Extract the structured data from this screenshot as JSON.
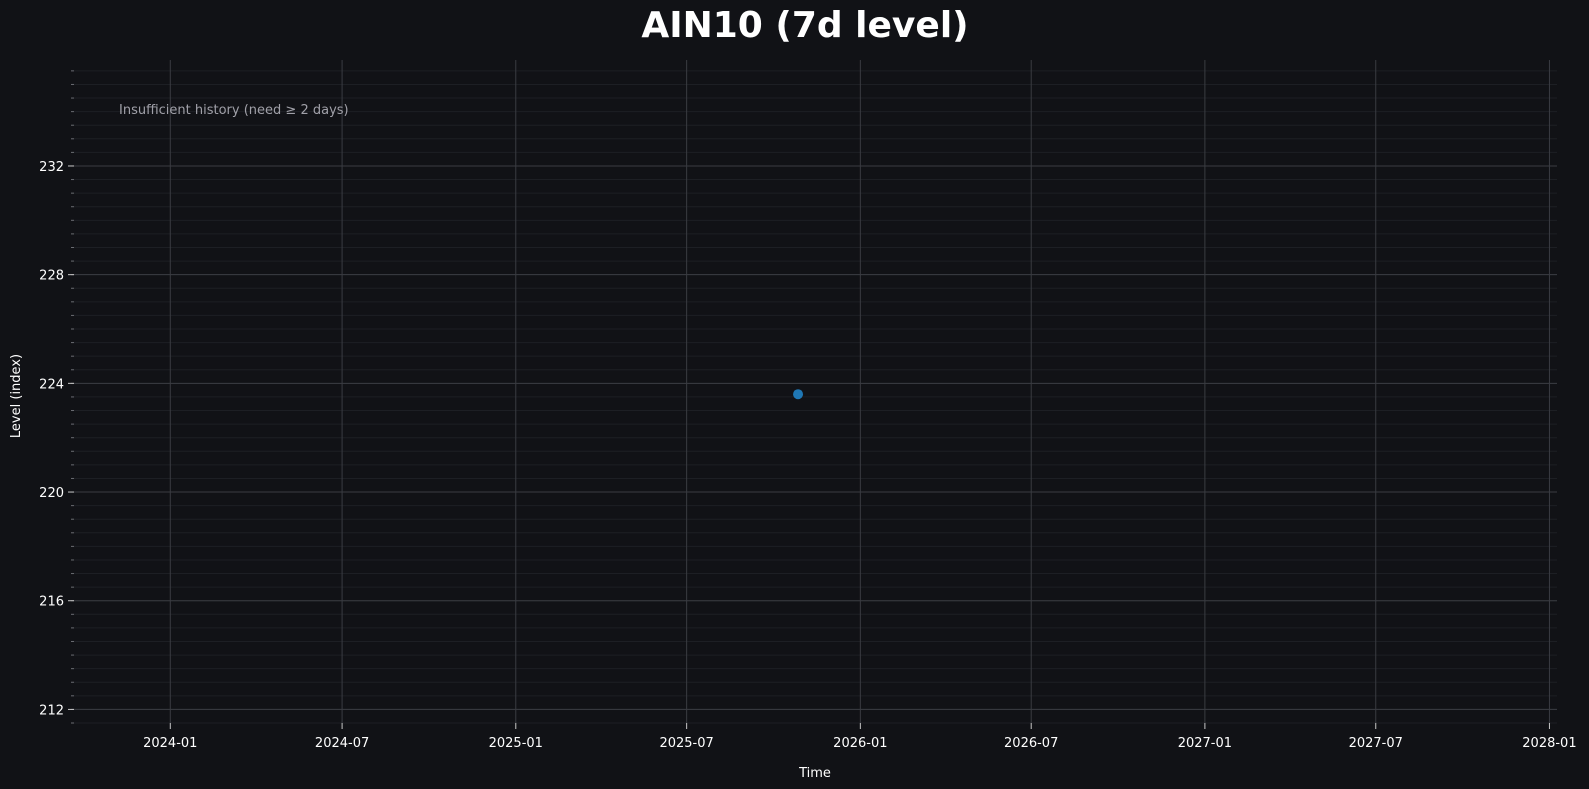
{
  "chart_data": {
    "type": "scatter",
    "title": "AIN10 (7d level)",
    "xlabel": "Time",
    "ylabel": "Level (index)",
    "x_type": "date",
    "xlim": [
      "2023-09-21",
      "2028-01-09"
    ],
    "ylim": [
      211.5,
      235.9
    ],
    "x_ticks": [
      "2024-01",
      "2024-07",
      "2025-01",
      "2025-07",
      "2026-01",
      "2026-07",
      "2027-01",
      "2027-07",
      "2028-01"
    ],
    "y_ticks": [
      212,
      216,
      220,
      224,
      228,
      232
    ],
    "y_minor_step": 0.5,
    "grid": true,
    "legend": "none",
    "points": [
      {
        "x": "2025-10-27",
        "y": 223.6
      }
    ],
    "annotation": "Insufficient history (need ≥ 2 days)",
    "colors": {
      "background": "#111216",
      "point": "#1f77b4",
      "major_grid": "#3a3c42",
      "minor_grid": "#1d1f24",
      "text": "#ffffff",
      "annotation": "#a0a0a8"
    }
  }
}
